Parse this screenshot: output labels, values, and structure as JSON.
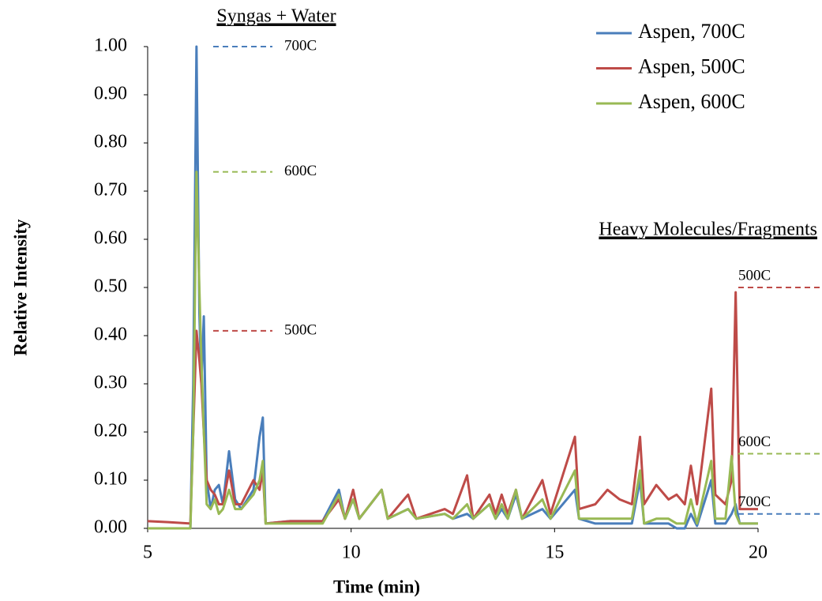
{
  "chart_data": {
    "type": "line",
    "xlabel": "Time (min)",
    "ylabel": "Relative Intensity",
    "xlim": [
      5,
      20
    ],
    "ylim": [
      0,
      1
    ],
    "xticks": [
      5,
      10,
      15,
      20
    ],
    "yticks": [
      {
        "value": 0,
        "label": "0.00"
      },
      {
        "value": 0.1,
        "label": "0.10"
      },
      {
        "value": 0.2,
        "label": "0.20"
      },
      {
        "value": 0.3,
        "label": "0.30"
      },
      {
        "value": 0.4,
        "label": "0.40"
      },
      {
        "value": 0.5,
        "label": "0.50"
      },
      {
        "value": 0.6,
        "label": "0.60"
      },
      {
        "value": 0.7,
        "label": "0.70"
      },
      {
        "value": 0.8,
        "label": "0.80"
      },
      {
        "value": 0.9,
        "label": "0.90"
      },
      {
        "value": 1,
        "label": "1.00"
      }
    ],
    "grid": false,
    "legend": "upper right",
    "x": [
      5,
      5.5,
      6.05,
      6.12,
      6.2,
      6.27,
      6.32,
      6.38,
      6.45,
      6.55,
      6.65,
      6.75,
      6.85,
      7.0,
      7.15,
      7.3,
      7.6,
      7.75,
      7.83,
      7.9,
      8.5,
      9.3,
      9.7,
      9.85,
      10.05,
      10.2,
      10.75,
      10.9,
      11.4,
      11.6,
      12.3,
      12.5,
      12.85,
      13.0,
      13.4,
      13.55,
      13.7,
      13.85,
      14.05,
      14.2,
      14.7,
      14.9,
      15.5,
      15.6,
      16.0,
      16.3,
      16.6,
      16.9,
      17.1,
      17.2,
      17.5,
      17.8,
      18.0,
      18.2,
      18.35,
      18.5,
      18.85,
      18.95,
      19.2,
      19.35,
      19.45,
      19.55,
      20
    ],
    "series": [
      {
        "name": "Aspen, 700C",
        "color": "#4a7ebb",
        "values": [
          0.0,
          0.0,
          0.0,
          0.3,
          1.0,
          0.45,
          0.3,
          0.44,
          0.1,
          0.04,
          0.08,
          0.09,
          0.05,
          0.16,
          0.06,
          0.04,
          0.08,
          0.19,
          0.23,
          0.01,
          0.015,
          0.015,
          0.08,
          0.02,
          0.06,
          0.02,
          0.08,
          0.02,
          0.04,
          0.02,
          0.03,
          0.02,
          0.03,
          0.02,
          0.05,
          0.02,
          0.04,
          0.02,
          0.07,
          0.02,
          0.04,
          0.02,
          0.08,
          0.02,
          0.01,
          0.01,
          0.01,
          0.01,
          0.1,
          0.01,
          0.01,
          0.01,
          0.0,
          0.0,
          0.03,
          0.005,
          0.1,
          0.01,
          0.01,
          0.03,
          0.05,
          0.01,
          0.01
        ]
      },
      {
        "name": "Aspen, 500C",
        "color": "#be4b48",
        "values": [
          0.015,
          0.013,
          0.01,
          0.2,
          0.41,
          0.35,
          0.3,
          0.2,
          0.1,
          0.08,
          0.07,
          0.05,
          0.05,
          0.12,
          0.05,
          0.05,
          0.1,
          0.08,
          0.12,
          0.01,
          0.015,
          0.015,
          0.06,
          0.02,
          0.08,
          0.02,
          0.08,
          0.02,
          0.07,
          0.02,
          0.04,
          0.03,
          0.11,
          0.02,
          0.07,
          0.03,
          0.07,
          0.03,
          0.08,
          0.02,
          0.1,
          0.03,
          0.19,
          0.04,
          0.05,
          0.08,
          0.06,
          0.05,
          0.19,
          0.05,
          0.09,
          0.06,
          0.07,
          0.05,
          0.13,
          0.05,
          0.29,
          0.07,
          0.05,
          0.1,
          0.49,
          0.04,
          0.04
        ]
      },
      {
        "name": "Aspen, 600C",
        "color": "#98b954",
        "values": [
          0.0,
          0.0,
          0.0,
          0.2,
          0.74,
          0.5,
          0.35,
          0.2,
          0.05,
          0.04,
          0.06,
          0.03,
          0.04,
          0.08,
          0.04,
          0.04,
          0.07,
          0.1,
          0.14,
          0.01,
          0.01,
          0.01,
          0.07,
          0.02,
          0.06,
          0.02,
          0.08,
          0.02,
          0.04,
          0.02,
          0.03,
          0.02,
          0.05,
          0.02,
          0.05,
          0.02,
          0.05,
          0.02,
          0.08,
          0.02,
          0.06,
          0.02,
          0.12,
          0.02,
          0.02,
          0.02,
          0.02,
          0.02,
          0.12,
          0.01,
          0.02,
          0.02,
          0.01,
          0.01,
          0.06,
          0.01,
          0.14,
          0.02,
          0.02,
          0.15,
          0.03,
          0.01,
          0.01
        ]
      }
    ],
    "annotations": [
      {
        "text": "Syngas + Water"
      },
      {
        "text": "Heavy Molecules/Fragments"
      }
    ],
    "reference_lines": [
      {
        "label": "700C",
        "value": 1.0,
        "color": "#4a7ebb",
        "side": "left"
      },
      {
        "label": "600C",
        "value": 0.74,
        "color": "#98b954",
        "side": "left"
      },
      {
        "label": "500C",
        "value": 0.41,
        "color": "#be4b48",
        "side": "left"
      },
      {
        "label": "500C",
        "value": 0.5,
        "color": "#be4b48",
        "side": "right"
      },
      {
        "label": "600C",
        "value": 0.155,
        "color": "#98b954",
        "side": "right"
      },
      {
        "label": "700C",
        "value": 0.03,
        "color": "#4a7ebb",
        "side": "right"
      }
    ]
  }
}
